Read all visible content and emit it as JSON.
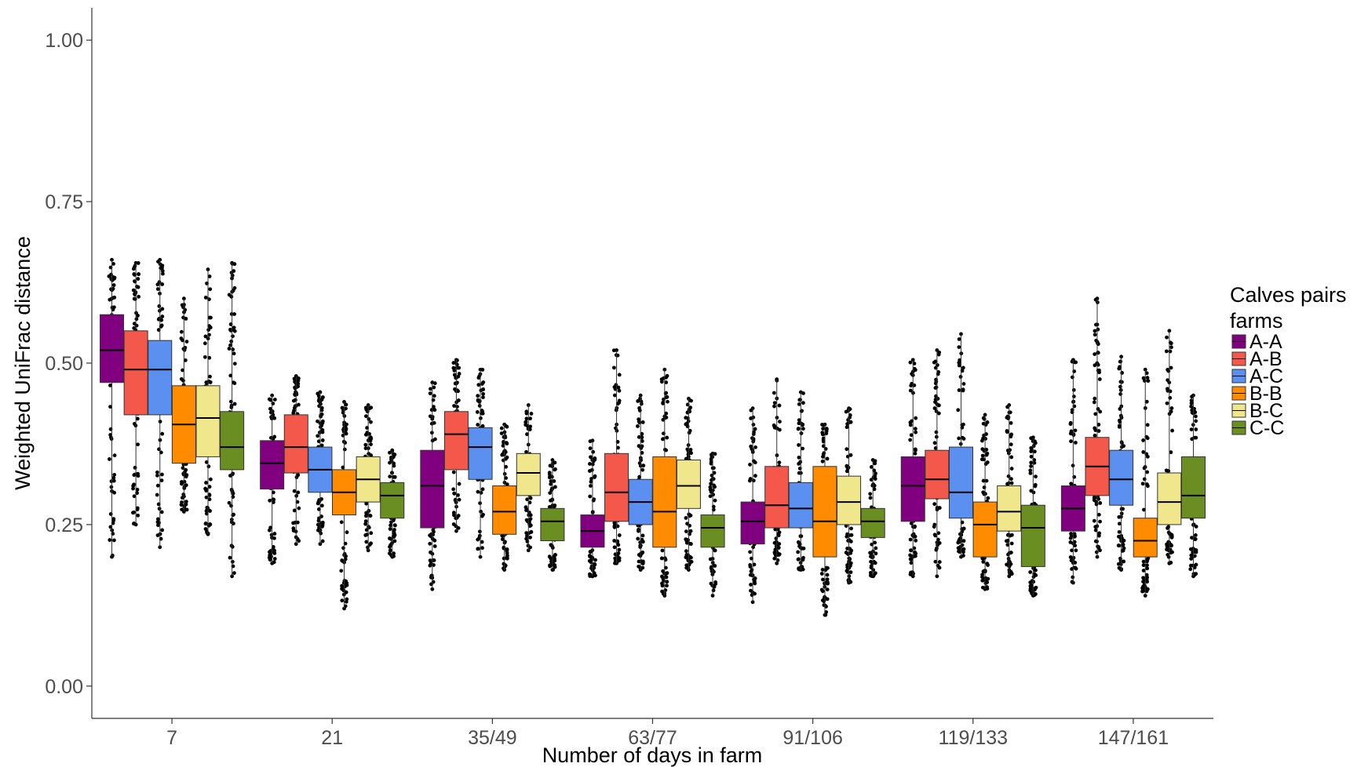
{
  "chart_data": {
    "type": "boxplot",
    "xlabel": "Number of days in farm",
    "ylabel": "Weighted UniFrac distance",
    "ylim": [
      -0.05,
      1.05
    ],
    "yticks": [
      "0.00",
      "0.25",
      "0.50",
      "0.75",
      "1.00"
    ],
    "ytick_values": [
      0,
      0.25,
      0.5,
      0.75,
      1.0
    ],
    "categories": [
      "7",
      "21",
      "35/49",
      "63/77",
      "91/106",
      "119/133",
      "147/161"
    ],
    "grid": false,
    "legend": {
      "title_lines": [
        "Calves pairs",
        "farms"
      ],
      "position": "right"
    },
    "series": [
      {
        "name": "A-A",
        "color": "#800080",
        "boxes": [
          {
            "min": 0.2,
            "q1": 0.47,
            "median": 0.52,
            "q3": 0.575,
            "max": 0.66
          },
          {
            "min": 0.19,
            "q1": 0.305,
            "median": 0.345,
            "q3": 0.38,
            "max": 0.45
          },
          {
            "min": 0.15,
            "q1": 0.245,
            "median": 0.31,
            "q3": 0.365,
            "max": 0.47
          },
          {
            "min": 0.17,
            "q1": 0.215,
            "median": 0.24,
            "q3": 0.265,
            "max": 0.38
          },
          {
            "min": 0.13,
            "q1": 0.22,
            "median": 0.255,
            "q3": 0.285,
            "max": 0.43
          },
          {
            "min": 0.17,
            "q1": 0.255,
            "median": 0.31,
            "q3": 0.355,
            "max": 0.505
          },
          {
            "min": 0.16,
            "q1": 0.24,
            "median": 0.275,
            "q3": 0.31,
            "max": 0.505
          }
        ]
      },
      {
        "name": "A-B",
        "color": "#f4584a",
        "boxes": [
          {
            "min": 0.25,
            "q1": 0.42,
            "median": 0.49,
            "q3": 0.55,
            "max": 0.655
          },
          {
            "min": 0.22,
            "q1": 0.33,
            "median": 0.37,
            "q3": 0.42,
            "max": 0.48
          },
          {
            "min": 0.24,
            "q1": 0.335,
            "median": 0.39,
            "q3": 0.425,
            "max": 0.505
          },
          {
            "min": 0.19,
            "q1": 0.255,
            "median": 0.3,
            "q3": 0.36,
            "max": 0.52
          },
          {
            "min": 0.19,
            "q1": 0.245,
            "median": 0.28,
            "q3": 0.34,
            "max": 0.475
          },
          {
            "min": 0.17,
            "q1": 0.29,
            "median": 0.32,
            "q3": 0.365,
            "max": 0.52
          },
          {
            "min": 0.2,
            "q1": 0.295,
            "median": 0.34,
            "q3": 0.385,
            "max": 0.6
          }
        ]
      },
      {
        "name": "A-C",
        "color": "#5b8ff0",
        "boxes": [
          {
            "min": 0.215,
            "q1": 0.42,
            "median": 0.49,
            "q3": 0.535,
            "max": 0.66
          },
          {
            "min": 0.22,
            "q1": 0.3,
            "median": 0.335,
            "q3": 0.37,
            "max": 0.455
          },
          {
            "min": 0.2,
            "q1": 0.32,
            "median": 0.37,
            "q3": 0.4,
            "max": 0.49
          },
          {
            "min": 0.18,
            "q1": 0.25,
            "median": 0.285,
            "q3": 0.32,
            "max": 0.45
          },
          {
            "min": 0.18,
            "q1": 0.245,
            "median": 0.275,
            "q3": 0.315,
            "max": 0.455
          },
          {
            "min": 0.2,
            "q1": 0.26,
            "median": 0.3,
            "q3": 0.37,
            "max": 0.545
          },
          {
            "min": 0.18,
            "q1": 0.28,
            "median": 0.32,
            "q3": 0.365,
            "max": 0.51
          }
        ]
      },
      {
        "name": "B-B",
        "color": "#ff8c00",
        "boxes": [
          {
            "min": 0.27,
            "q1": 0.345,
            "median": 0.405,
            "q3": 0.465,
            "max": 0.6
          },
          {
            "min": 0.12,
            "q1": 0.265,
            "median": 0.3,
            "q3": 0.335,
            "max": 0.44
          },
          {
            "min": 0.18,
            "q1": 0.235,
            "median": 0.27,
            "q3": 0.31,
            "max": 0.405
          },
          {
            "min": 0.14,
            "q1": 0.215,
            "median": 0.27,
            "q3": 0.355,
            "max": 0.49
          },
          {
            "min": 0.11,
            "q1": 0.2,
            "median": 0.255,
            "q3": 0.34,
            "max": 0.405
          },
          {
            "min": 0.15,
            "q1": 0.2,
            "median": 0.25,
            "q3": 0.285,
            "max": 0.42
          },
          {
            "min": 0.14,
            "q1": 0.2,
            "median": 0.225,
            "q3": 0.26,
            "max": 0.49
          }
        ]
      },
      {
        "name": "B-C",
        "color": "#f0e68c",
        "boxes": [
          {
            "min": 0.235,
            "q1": 0.355,
            "median": 0.415,
            "q3": 0.465,
            "max": 0.645
          },
          {
            "min": 0.21,
            "q1": 0.285,
            "median": 0.32,
            "q3": 0.355,
            "max": 0.435
          },
          {
            "min": 0.21,
            "q1": 0.295,
            "median": 0.33,
            "q3": 0.36,
            "max": 0.435
          },
          {
            "min": 0.18,
            "q1": 0.275,
            "median": 0.31,
            "q3": 0.35,
            "max": 0.445
          },
          {
            "min": 0.16,
            "q1": 0.25,
            "median": 0.285,
            "q3": 0.325,
            "max": 0.43
          },
          {
            "min": 0.17,
            "q1": 0.24,
            "median": 0.27,
            "q3": 0.31,
            "max": 0.435
          },
          {
            "min": 0.19,
            "q1": 0.25,
            "median": 0.285,
            "q3": 0.33,
            "max": 0.55
          }
        ]
      },
      {
        "name": "C-C",
        "color": "#6b8e23",
        "boxes": [
          {
            "min": 0.17,
            "q1": 0.335,
            "median": 0.37,
            "q3": 0.425,
            "max": 0.655
          },
          {
            "min": 0.2,
            "q1": 0.26,
            "median": 0.295,
            "q3": 0.315,
            "max": 0.365
          },
          {
            "min": 0.18,
            "q1": 0.225,
            "median": 0.255,
            "q3": 0.275,
            "max": 0.35
          },
          {
            "min": 0.14,
            "q1": 0.215,
            "median": 0.245,
            "q3": 0.265,
            "max": 0.36
          },
          {
            "min": 0.17,
            "q1": 0.23,
            "median": 0.255,
            "q3": 0.275,
            "max": 0.35
          },
          {
            "min": 0.14,
            "q1": 0.185,
            "median": 0.245,
            "q3": 0.28,
            "max": 0.385
          },
          {
            "min": 0.17,
            "q1": 0.26,
            "median": 0.295,
            "q3": 0.355,
            "max": 0.45
          }
        ]
      }
    ]
  }
}
